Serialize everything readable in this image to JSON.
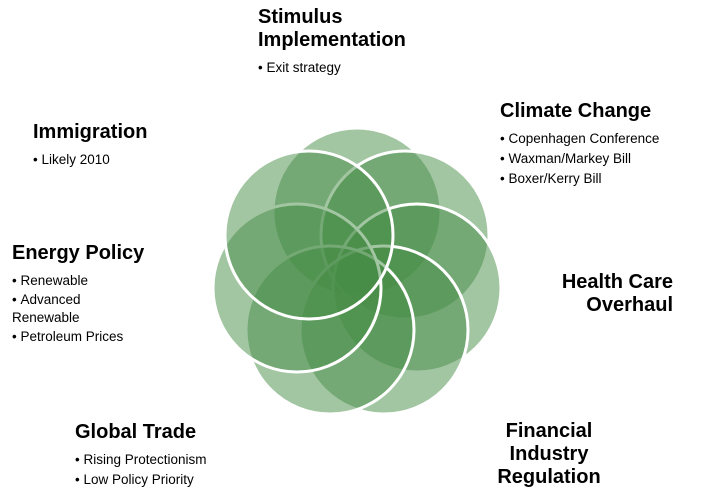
{
  "topics": [
    {
      "title": "Stimulus Implementation",
      "bullets": [
        "Exit strategy"
      ]
    },
    {
      "title": "Climate Change",
      "bullets": [
        "Copenhagen Conference",
        "Waxman/Markey Bill",
        "Boxer/Kerry Bill"
      ]
    },
    {
      "title": "Immigration",
      "bullets": [
        "Likely 2010"
      ]
    },
    {
      "title": "Energy Policy",
      "bullets": [
        "Renewable",
        "Advanced Renewable",
        "Petroleum Prices"
      ]
    },
    {
      "title": "Health Care Overhaul",
      "bullets": []
    },
    {
      "title": "Global Trade",
      "bullets": [
        "Rising Protectionism",
        "Low Policy Priority"
      ]
    },
    {
      "title": "Financial Industry Regulation",
      "bullets": []
    }
  ]
}
